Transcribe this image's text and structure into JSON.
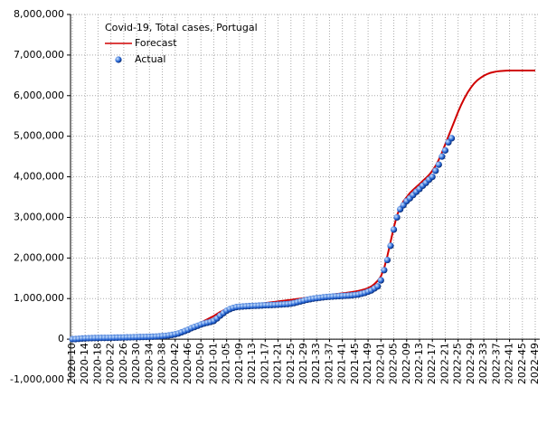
{
  "chart_data": {
    "type": "line",
    "title": "Covid-19, Total cases, Portugal",
    "categories": [
      "2020-10",
      null,
      null,
      null,
      "2020-14",
      null,
      null,
      null,
      "2020-18",
      null,
      null,
      null,
      "2020-22",
      null,
      null,
      null,
      "2020-26",
      null,
      null,
      null,
      "2020-30",
      null,
      null,
      null,
      "2020-34",
      null,
      null,
      null,
      "2020-38",
      null,
      null,
      null,
      "2020-42",
      null,
      null,
      null,
      "2020-46",
      null,
      null,
      null,
      "2020-50",
      null,
      null,
      null,
      "2021-01",
      null,
      null,
      null,
      "2021-05",
      null,
      null,
      null,
      "2021-09",
      null,
      null,
      null,
      "2021-13",
      null,
      null,
      null,
      "2021-17",
      null,
      null,
      null,
      "2021-21",
      null,
      null,
      null,
      "2021-25",
      null,
      null,
      null,
      "2021-29",
      null,
      null,
      null,
      "2021-33",
      null,
      null,
      null,
      "2021-37",
      null,
      null,
      null,
      "2021-41",
      null,
      null,
      null,
      "2021-45",
      null,
      null,
      null,
      "2021-49",
      null,
      null,
      null,
      "2022-01",
      null,
      null,
      null,
      "2022-05",
      null,
      null,
      null,
      "2022-09",
      null,
      null,
      null,
      "2022-13",
      null,
      null,
      null,
      "2022-17",
      null,
      null,
      null,
      "2022-21",
      null,
      null,
      null,
      "2022-25",
      null,
      null,
      null,
      "2022-29",
      null,
      null,
      null,
      "2022-33",
      null,
      null,
      null,
      "2022-37",
      null,
      null,
      null,
      "2022-41",
      null,
      null,
      null,
      "2022-45",
      null,
      null,
      null,
      "2022-49"
    ],
    "series": [
      {
        "name": "Forecast",
        "color": "#d00000",
        "values": [
          0,
          1000,
          3000,
          5000,
          8000,
          10000,
          12000,
          14000,
          16000,
          18000,
          20000,
          22000,
          24000,
          26000,
          28000,
          30000,
          32000,
          34000,
          36000,
          38000,
          40000,
          42000,
          44000,
          46000,
          48000,
          50000,
          55000,
          60000,
          68000,
          78000,
          90000,
          105000,
          125000,
          150000,
          180000,
          215000,
          250000,
          290000,
          330000,
          370000,
          410000,
          450000,
          490000,
          530000,
          570000,
          620000,
          670000,
          710000,
          740000,
          765000,
          785000,
          800000,
          810000,
          820000,
          830000,
          840000,
          850000,
          860000,
          870000,
          880000,
          890000,
          900000,
          910000,
          920000,
          930000,
          940000,
          950000,
          960000,
          970000,
          980000,
          990000,
          1000000,
          1010000,
          1020000,
          1030000,
          1040000,
          1050000,
          1060000,
          1070000,
          1080000,
          1090000,
          1100000,
          1110000,
          1120000,
          1130000,
          1140000,
          1150000,
          1160000,
          1175000,
          1190000,
          1210000,
          1230000,
          1260000,
          1300000,
          1360000,
          1440000,
          1550000,
          1750000,
          2050000,
          2400000,
          2750000,
          3050000,
          3250000,
          3400000,
          3500000,
          3600000,
          3680000,
          3750000,
          3820000,
          3900000,
          3970000,
          4050000,
          4150000,
          4270000,
          4420000,
          4600000,
          4800000,
          5000000,
          5200000,
          5400000,
          5600000,
          5780000,
          5940000,
          6080000,
          6200000,
          6300000,
          6380000,
          6440000,
          6490000,
          6530000,
          6560000,
          6580000,
          6595000,
          6605000,
          6610000,
          6615000,
          6618000,
          6620000,
          6620000,
          6620000,
          6620000,
          6620000,
          6620000,
          6620000,
          6620000
        ]
      },
      {
        "name": "Actual",
        "color": "#1f5fd0",
        "values": [
          0,
          2000,
          8000,
          16000,
          20000,
          23000,
          25000,
          27000,
          29000,
          30000,
          31000,
          32000,
          34000,
          36000,
          38000,
          40000,
          42000,
          44000,
          46000,
          48000,
          50000,
          52000,
          54000,
          56000,
          58000,
          61000,
          65000,
          70000,
          75000,
          82000,
          92000,
          105000,
          120000,
          140000,
          170000,
          200000,
          230000,
          270000,
          300000,
          330000,
          360000,
          385000,
          405000,
          425000,
          450000,
          510000,
          580000,
          640000,
          700000,
          740000,
          770000,
          790000,
          800000,
          805000,
          810000,
          815000,
          820000,
          823000,
          826000,
          830000,
          835000,
          838000,
          841000,
          845000,
          850000,
          855000,
          860000,
          865000,
          875000,
          890000,
          910000,
          930000,
          950000,
          970000,
          985000,
          1000000,
          1010000,
          1020000,
          1030000,
          1040000,
          1045000,
          1050000,
          1055000,
          1060000,
          1065000,
          1070000,
          1075000,
          1080000,
          1090000,
          1100000,
          1120000,
          1140000,
          1170000,
          1200000,
          1250000,
          1300000,
          1450000,
          1700000,
          1950000,
          2300000,
          2700000,
          3000000,
          3200000,
          3300000,
          3400000,
          3470000,
          3550000,
          3630000,
          3700000,
          3780000,
          3850000,
          3930000,
          4000000,
          4150000,
          4300000,
          4500000,
          4650000,
          4850000,
          4950000,
          null,
          null,
          null,
          null,
          null,
          null,
          null,
          null,
          null,
          null,
          null,
          null,
          null,
          null,
          null,
          null,
          null,
          null,
          null,
          null,
          null,
          null,
          null,
          null,
          null,
          null
        ]
      }
    ],
    "ylim": [
      -1000000,
      8000000
    ],
    "yticks": [
      {
        "value": -1000000,
        "label": "-1,000,000"
      },
      0,
      {
        "value": 1000000,
        "label": "1,000,000"
      },
      {
        "value": 2000000,
        "label": "2,000,000"
      },
      {
        "value": 3000000,
        "label": "3,000,000"
      },
      {
        "value": 4000000,
        "label": "4,000,000"
      },
      {
        "value": 5000000,
        "label": "5,000,000"
      },
      {
        "value": 6000000,
        "label": "6,000,000"
      },
      {
        "value": 7000000,
        "label": "7,000,000"
      },
      {
        "value": 8000000,
        "label": "8,000,000"
      }
    ],
    "grid": true,
    "legend": "top-left"
  }
}
